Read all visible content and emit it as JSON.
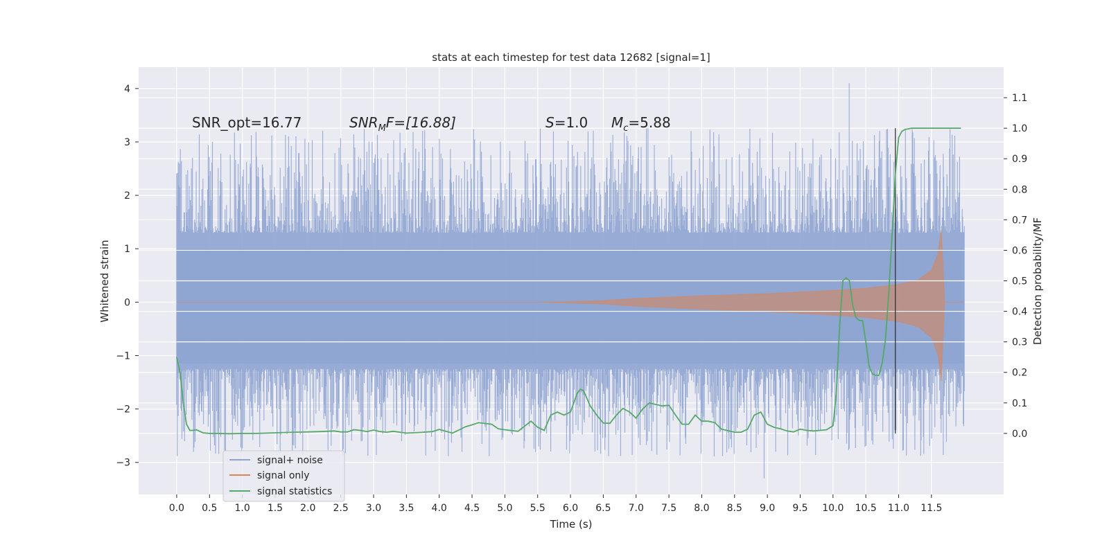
{
  "chart_data": {
    "type": "line",
    "title": "stats at each timestep for test data 12682 [signal=1]",
    "xlabel": "Time (s)",
    "ylabel": "Whitened strain",
    "ylabel_right": "Detection probability/MF",
    "xlim": [
      -0.58,
      12.6
    ],
    "ylim": [
      -3.6,
      4.4
    ],
    "ylim_right": [
      -0.2,
      1.2
    ],
    "x_ticks": [
      "0.0",
      "0.5",
      "1.0",
      "1.5",
      "2.0",
      "2.5",
      "3.0",
      "3.5",
      "4.0",
      "4.5",
      "5.0",
      "5.5",
      "6.0",
      "6.5",
      "7.0",
      "7.5",
      "8.0",
      "8.5",
      "9.0",
      "9.5",
      "10.0",
      "10.5",
      "11.0",
      "11.5"
    ],
    "y_ticks": [
      "−3",
      "−2",
      "−1",
      "0",
      "1",
      "2",
      "3",
      "4"
    ],
    "y_ticks_right": [
      "0.0",
      "0.1",
      "0.2",
      "0.3",
      "0.4",
      "0.5",
      "0.6",
      "0.7",
      "0.8",
      "0.9",
      "1.0",
      "1.1"
    ],
    "grid": true,
    "legend_position": "lower-left",
    "annotations": {
      "snr_opt": "SNR_opt=16.77",
      "snr_mf_name": "SNR",
      "snr_mf_sub": "M",
      "snr_mf_rest": "F=[16.88]",
      "s_name": "S",
      "s_value": "=1.0",
      "mc_name": "M",
      "mc_sub": "c",
      "mc_value": "=5.88"
    },
    "vline_x": 10.95,
    "colors": {
      "noise": "#8ea4d2",
      "signal": "#dd8452",
      "stats": "#55a868",
      "vline": "#333333",
      "background": "#eaeaf2",
      "grid": "#ffffff"
    },
    "series": [
      {
        "name": "signal+ noise",
        "kind": "noise-band",
        "x_range": [
          0.0,
          12.0
        ],
        "core_envelope": [
          -1.25,
          1.3
        ],
        "spike_max": 4.1,
        "spike_min": -3.3
      },
      {
        "name": "signal only",
        "kind": "chirp",
        "x": [
          0.0,
          5.5,
          6.0,
          6.5,
          7.0,
          8.0,
          9.0,
          10.0,
          10.5,
          11.0,
          11.3,
          11.5,
          11.6,
          11.65,
          11.7,
          12.0
        ],
        "amplitude": [
          0.0,
          0.0,
          0.01,
          0.03,
          0.07,
          0.12,
          0.16,
          0.22,
          0.26,
          0.33,
          0.42,
          0.6,
          0.9,
          1.35,
          0.0,
          0.0
        ]
      },
      {
        "name": "signal statistics",
        "kind": "line",
        "axis": "right",
        "x": [
          0.0,
          0.05,
          0.1,
          0.15,
          0.2,
          0.25,
          0.3,
          0.4,
          0.5,
          0.6,
          0.8,
          1.0,
          1.2,
          1.5,
          1.8,
          2.0,
          2.2,
          2.4,
          2.5,
          2.6,
          2.7,
          2.8,
          2.9,
          3.0,
          3.1,
          3.2,
          3.3,
          3.5,
          3.7,
          3.9,
          4.0,
          4.2,
          4.3,
          4.4,
          4.5,
          4.6,
          4.8,
          4.9,
          5.0,
          5.2,
          5.4,
          5.5,
          5.6,
          5.7,
          5.8,
          5.9,
          6.0,
          6.1,
          6.15,
          6.2,
          6.3,
          6.4,
          6.5,
          6.6,
          6.7,
          6.8,
          6.9,
          7.0,
          7.1,
          7.2,
          7.3,
          7.4,
          7.5,
          7.6,
          7.7,
          7.8,
          7.9,
          8.0,
          8.1,
          8.2,
          8.3,
          8.4,
          8.5,
          8.6,
          8.7,
          8.8,
          8.9,
          9.0,
          9.1,
          9.2,
          9.3,
          9.4,
          9.5,
          9.6,
          9.7,
          9.8,
          9.9,
          10.0,
          10.05,
          10.1,
          10.15,
          10.2,
          10.25,
          10.3,
          10.35,
          10.4,
          10.45,
          10.5,
          10.55,
          10.6,
          10.65,
          10.7,
          10.75,
          10.8,
          10.85,
          10.9,
          10.95,
          11.0,
          11.05,
          11.1,
          11.2,
          11.3,
          11.5,
          11.7,
          11.95
        ],
        "y": [
          0.25,
          0.2,
          0.1,
          0.03,
          0.01,
          0.01,
          0.012,
          0.002,
          0.0,
          0.0,
          -0.001,
          0.0,
          0.0,
          0.002,
          0.004,
          0.005,
          0.006,
          0.008,
          0.005,
          0.005,
          0.012,
          0.01,
          0.006,
          0.011,
          0.006,
          0.004,
          0.007,
          0.001,
          0.003,
          0.006,
          0.013,
          0.001,
          0.011,
          0.022,
          0.028,
          0.035,
          0.03,
          0.015,
          0.012,
          0.007,
          0.04,
          0.02,
          0.01,
          0.06,
          0.07,
          0.06,
          0.07,
          0.13,
          0.145,
          0.14,
          0.09,
          0.06,
          0.034,
          0.033,
          0.06,
          0.082,
          0.07,
          0.05,
          0.08,
          0.1,
          0.095,
          0.09,
          0.092,
          0.06,
          0.03,
          0.03,
          0.06,
          0.04,
          0.04,
          0.035,
          0.014,
          0.009,
          0.004,
          0.004,
          0.014,
          0.06,
          0.07,
          0.03,
          0.02,
          0.015,
          0.008,
          0.005,
          0.014,
          0.01,
          0.008,
          0.01,
          0.012,
          0.025,
          0.13,
          0.35,
          0.5,
          0.51,
          0.5,
          0.42,
          0.38,
          0.37,
          0.37,
          0.3,
          0.22,
          0.195,
          0.19,
          0.19,
          0.23,
          0.31,
          0.46,
          0.65,
          0.85,
          0.97,
          0.99,
          0.996,
          1.0,
          1.0,
          1.0,
          1.0,
          1.0
        ]
      }
    ]
  }
}
